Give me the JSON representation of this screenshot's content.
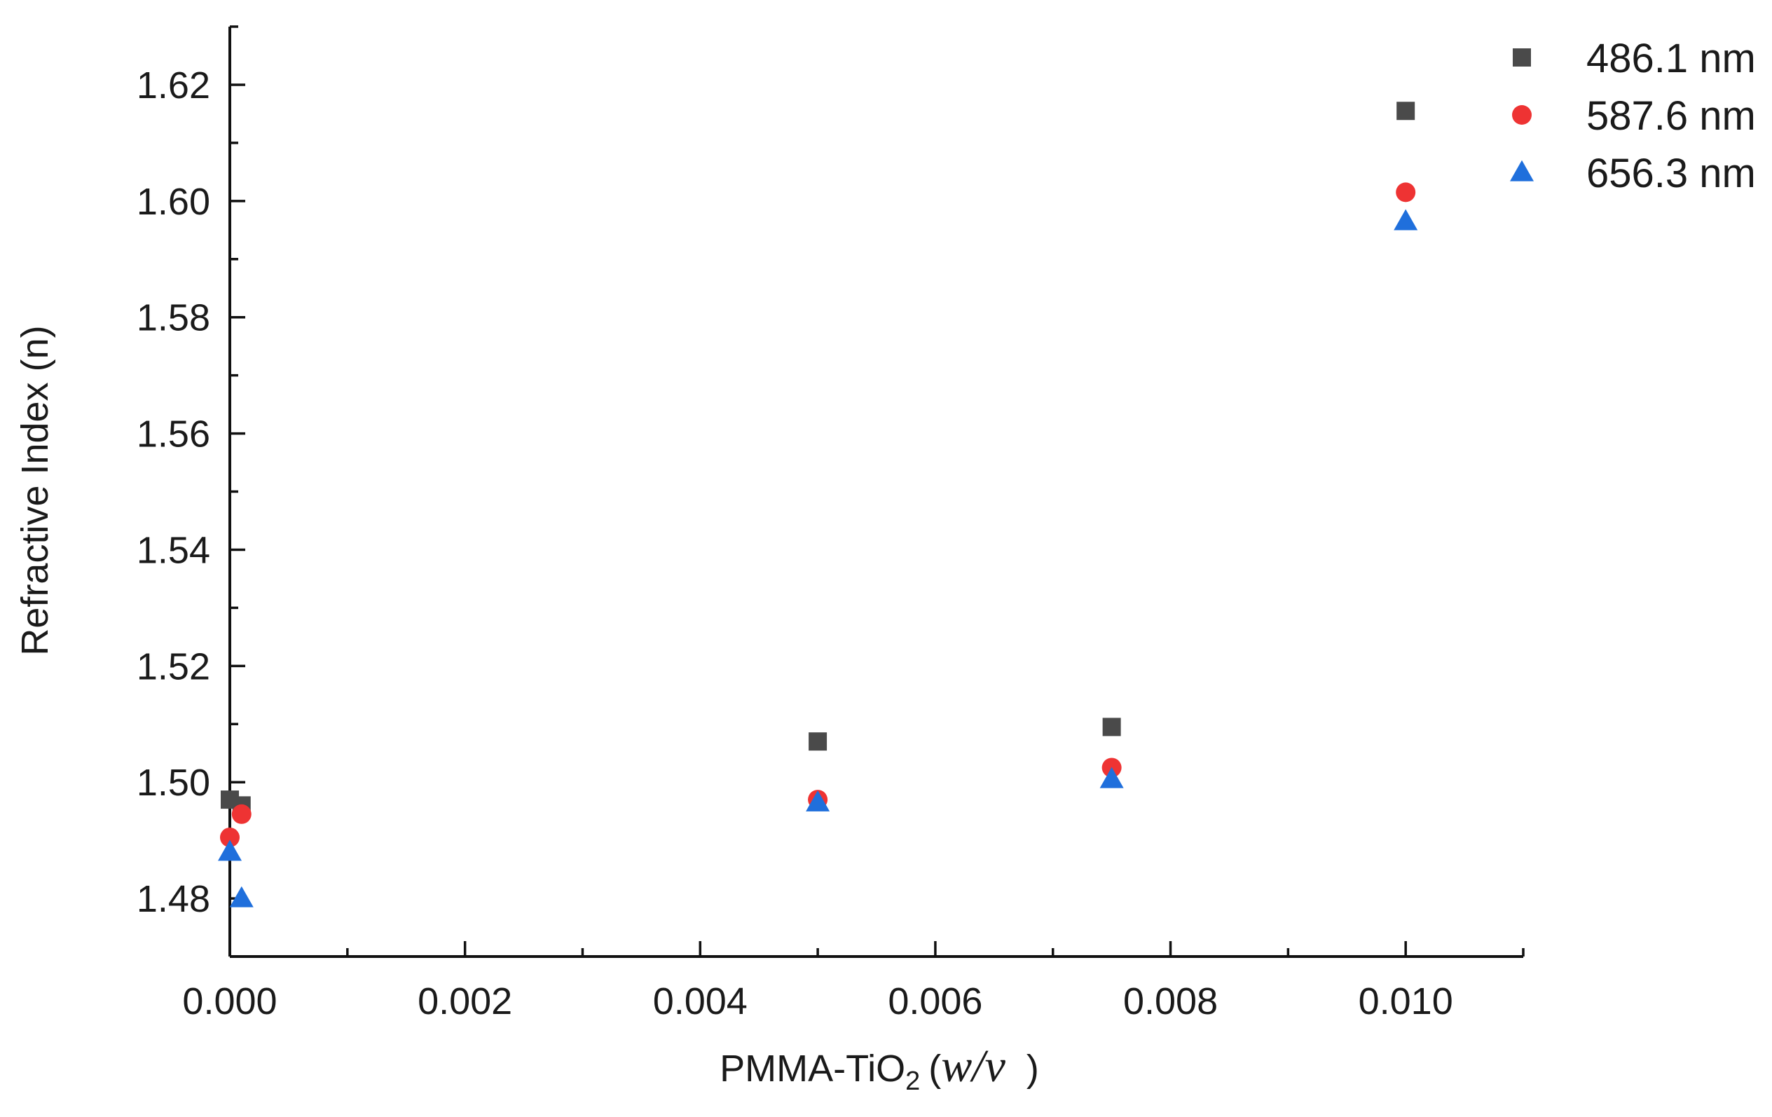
{
  "chart_data": {
    "type": "scatter",
    "title": "",
    "xlabel": {
      "prefix": "PMMA-TiO",
      "subscript": "2",
      "paren_open": "(",
      "italic": "w/v",
      "paren_close": ")"
    },
    "ylabel": "Refractive Index (n)",
    "xlim": [
      0.0,
      0.011
    ],
    "ylim": [
      1.47,
      1.63
    ],
    "x_ticks": [
      0.0,
      0.002,
      0.004,
      0.006,
      0.008,
      0.01
    ],
    "x_tick_labels": [
      "0.000",
      "0.002",
      "0.004",
      "0.006",
      "0.008",
      "0.010"
    ],
    "x_minor_ticks": [
      0.001,
      0.003,
      0.005,
      0.007,
      0.009,
      0.011
    ],
    "y_ticks": [
      1.48,
      1.5,
      1.52,
      1.54,
      1.56,
      1.58,
      1.6,
      1.62
    ],
    "y_tick_labels": [
      "1.48",
      "1.50",
      "1.52",
      "1.54",
      "1.56",
      "1.58",
      "1.60",
      "1.62"
    ],
    "y_minor_ticks": [
      1.47,
      1.49,
      1.51,
      1.53,
      1.55,
      1.57,
      1.59,
      1.61,
      1.63
    ],
    "grid": false,
    "legend_position": "top-right",
    "series": [
      {
        "name": "486.1 nm",
        "marker": "square",
        "color": "#4a4a4a",
        "x": [
          0.0,
          0.0001,
          0.005,
          0.0075,
          0.01
        ],
        "y": [
          1.497,
          1.496,
          1.507,
          1.5095,
          1.6155
        ]
      },
      {
        "name": "587.6 nm",
        "marker": "circle",
        "color": "#ee3333",
        "x": [
          0.0,
          0.0001,
          0.005,
          0.0075,
          0.01
        ],
        "y": [
          1.4905,
          1.4945,
          1.497,
          1.5025,
          1.6015
        ]
      },
      {
        "name": "656.3 nm",
        "marker": "triangle",
        "color": "#1f6fdc",
        "x": [
          0.0,
          0.0001,
          0.005,
          0.0075,
          0.01
        ],
        "y": [
          1.488,
          1.48,
          1.4965,
          1.5005,
          1.5965
        ]
      }
    ]
  }
}
